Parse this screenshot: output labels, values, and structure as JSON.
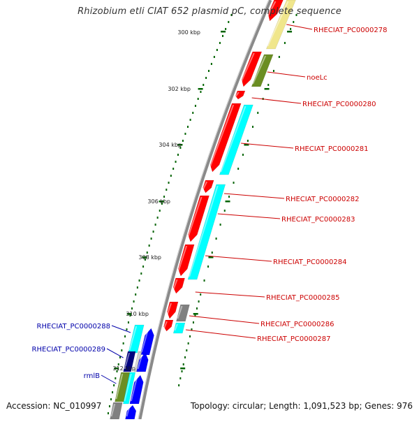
{
  "title": "Rhizobium etli CIAT 652 plasmid pC, complete sequence",
  "footer": {
    "accession": "Accession: NC_010997",
    "summary": "Topology: circular; Length: 1,091,523 bp; Genes: 976"
  },
  "ticks": [
    "300 kbp",
    "302 kbp",
    "304 kbp",
    "306 kbp",
    "308 kbp",
    "310 kbp",
    "312 kbp"
  ],
  "labels_right": [
    "RHECIAT_PC0000278",
    "noeLc",
    "RHECIAT_PC0000280",
    "RHECIAT_PC0000281",
    "RHECIAT_PC0000282",
    "RHECIAT_PC0000283",
    "RHECIAT_PC0000284",
    "RHECIAT_PC0000285",
    "RHECIAT_PC0000286",
    "RHECIAT_PC0000287"
  ],
  "labels_left": [
    "RHECIAT_PC0000288",
    "RHECIAT_PC0000289",
    "rmlB"
  ],
  "colors": {
    "backbone": "#8a8a8a",
    "cds_red": "#ff0000",
    "cds_cyan": "#00ffff",
    "cds_khaki": "#f0e68c",
    "cds_olive": "#6b8e23",
    "cds_gray": "#808080",
    "cds_blue": "#0000ff",
    "cds_navy": "#000080",
    "tick_green": "#006400",
    "label_red": "#cc0000",
    "label_blue": "#0000aa"
  }
}
